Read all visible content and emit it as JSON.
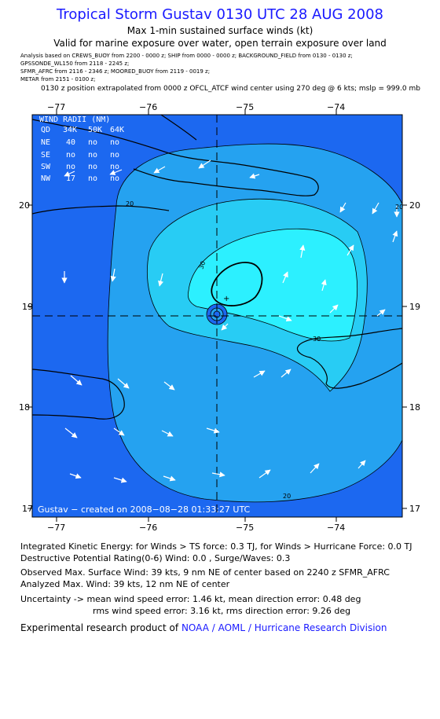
{
  "header": {
    "title": "Tropical Storm Gustav 0130 UTC 28 AUG 2008",
    "subtitle1": "Max 1-min sustained surface winds (kt)",
    "subtitle2": "Valid for marine exposure over water, open terrain exposure over land"
  },
  "analysis_sources": {
    "line1": "Analysis based on  CREWS_BUOY from  2200 - 0000 z;  SHIP from 0000 - 0000 z;  BACKGROUND_FIELD from 0130 - 0130 z;",
    "line2": "GPSSONDE_WL150 from  2118 - 2245 z;",
    "line3": "SFMR_AFRC from  2116 - 2346 z;  MOORED_BUOY from  2119 - 0019 z;",
    "line4": "METAR from  2151 - 0100 z;",
    "position_note": "0130 z position extrapolated from 0000 z OFCL_ATCF wind center using 270 deg @ 6 kts; mslp = 999.0 mb"
  },
  "map": {
    "lon_ticks": [
      "−77",
      "−76",
      "−75",
      "−74"
    ],
    "lat_ticks": [
      "20",
      "19",
      "18",
      "17"
    ],
    "contour_labels": [
      "20",
      "30",
      "30",
      "20",
      "20"
    ],
    "credit": "Gustav − created on 2008−08−28 01:33:27 UTC",
    "colors": {
      "lt20": "#1c68f0",
      "20to30": "#25a2f0",
      "30to34": "#28ccf4",
      "gt34": "#2cf0ff",
      "land_border": "#000000",
      "arrows": "#ffffff"
    }
  },
  "wind_radii": {
    "title": "WIND RADII (NM)",
    "header": [
      "QD",
      "34K",
      "50K",
      "64K"
    ],
    "rows": [
      [
        "NE",
        "40",
        "no",
        "no"
      ],
      [
        "SE",
        "no",
        "no",
        "no"
      ],
      [
        "SW",
        "no",
        "no",
        "no"
      ],
      [
        "NW",
        "17",
        "no",
        "no"
      ]
    ]
  },
  "footer": {
    "ike": "Integrated Kinetic Energy:  for Winds > TS force: 0.3 TJ,  for Winds > Hurricane Force: 0.0 TJ",
    "dpr": "Destructive Potential Rating(0-6)   Wind: 0.0 , Surge/Waves: 0.3",
    "obs": "Observed Max. Surface Wind: 39 kts, 9 nm NE of center based on 2240 z SFMR_AFRC",
    "analyzed": "Analyzed Max. Wind: 39 kts, 12 nm NE of center",
    "unc1": "Uncertainty -> mean wind speed error: 1.46 kt,   mean direction error: 0.48 deg",
    "unc2": "rms wind speed error: 3.16 kt,   rms direction error: 9.26 deg",
    "product_prefix": "Experimental research product of",
    "product_org": "NOAA / AOML / Hurricane Research Division"
  }
}
